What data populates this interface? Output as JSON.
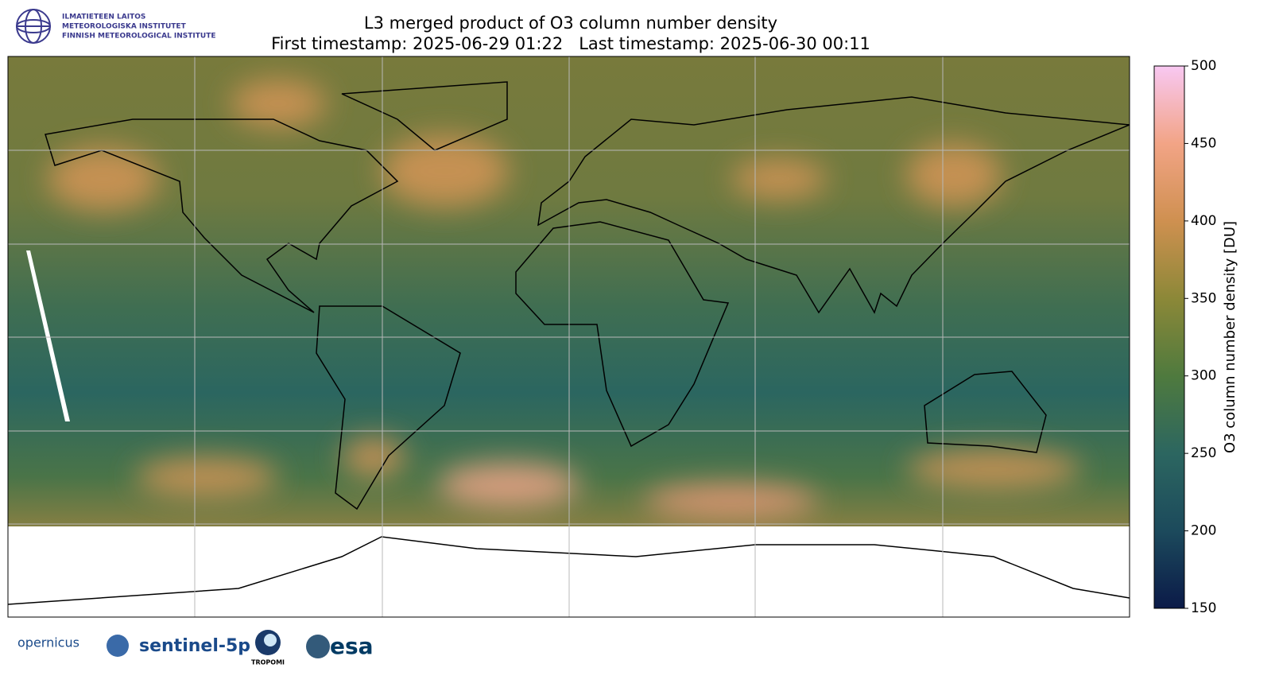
{
  "header": {
    "institute": [
      "ILMATIETEEN LAITOS",
      "METEOROLOGISKA INSTITUTET",
      "FINNISH METEOROLOGICAL INSTITUTE"
    ]
  },
  "map": {
    "title": "L3 merged product of O3 column number density",
    "subtitle": "First timestamp: 2025-06-29 01:22   Last timestamp: 2025-06-30 00:11",
    "colorbar": {
      "label": "O3 column number density [DU]",
      "lim": [
        150,
        500
      ],
      "ticks": [
        150,
        200,
        250,
        300,
        350,
        400,
        450,
        500
      ],
      "colors": [
        "#0b1a48",
        "#1c4a5c",
        "#2c6660",
        "#4f7a3e",
        "#8c8838",
        "#cf9050",
        "#f2a486",
        "#f8c8f2"
      ]
    }
  },
  "footer": {
    "logos": [
      "opernicus",
      "sentinel-5p",
      "TROPOMI",
      "esa"
    ]
  }
}
